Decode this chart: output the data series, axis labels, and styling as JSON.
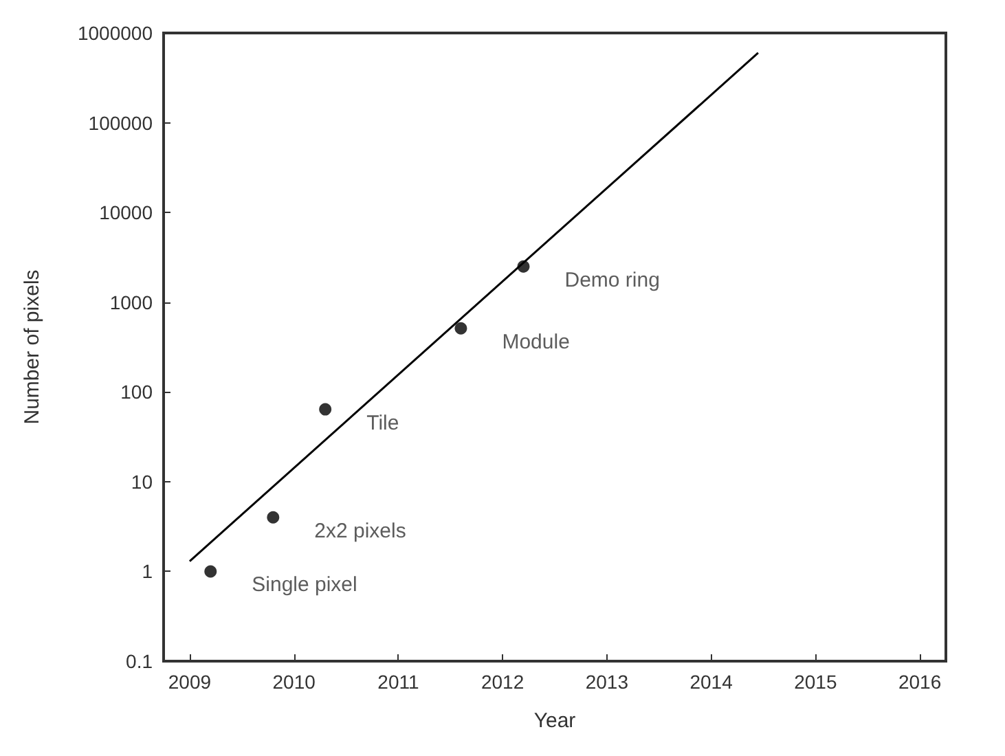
{
  "chart_data": {
    "type": "scatter",
    "xlabel": "Year",
    "ylabel": "Number of pixels",
    "log": "y",
    "xlim": [
      2008.75,
      2016.25
    ],
    "xticks": [
      2009,
      2010,
      2011,
      2012,
      2013,
      2014,
      2015,
      2016
    ],
    "ylim": [
      0.1,
      1000000
    ],
    "yticks": [
      0.1,
      1,
      10,
      100,
      1000,
      10000,
      100000,
      1000000
    ],
    "grid": false,
    "series": [
      {
        "marker": "circle",
        "color": "#000000",
        "x": [
          2009.2,
          2009.8,
          2010.3,
          2011.6,
          2012.2
        ],
        "values": [
          1,
          4,
          64,
          512,
          2500
        ]
      },
      {
        "type": "line",
        "color": "#000000",
        "line_style": "solid",
        "x": [
          2009.0,
          2014.45
        ],
        "values": [
          1.3,
          600000
        ]
      }
    ],
    "annotations": [
      {
        "text": "Single pixel",
        "x": 2009.2,
        "y": 1
      },
      {
        "text": "2x2 pixels",
        "x": 2009.8,
        "y": 4
      },
      {
        "text": "Tile",
        "x": 2010.3,
        "y": 64
      },
      {
        "text": "Module",
        "x": 2011.6,
        "y": 512
      },
      {
        "text": "Demo ring",
        "x": 2012.2,
        "y": 2500
      }
    ]
  }
}
